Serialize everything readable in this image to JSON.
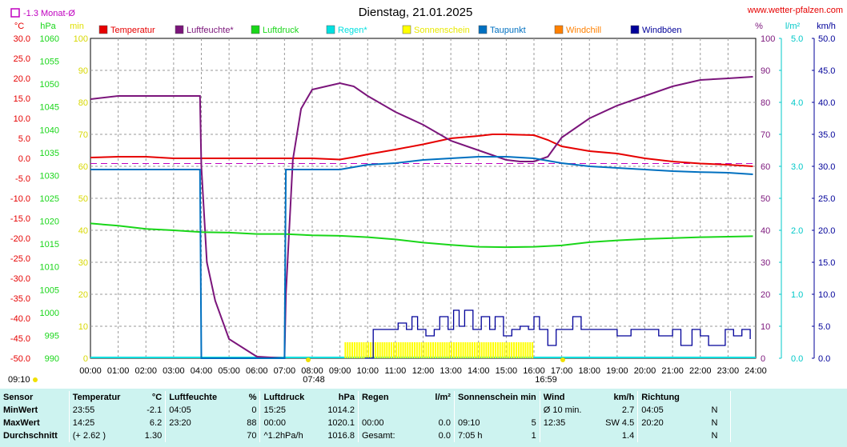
{
  "header": {
    "title": "Dienstag, 21.01.2025",
    "site": "www.wetter-pfalzen.com",
    "month_avg": "-1.3 Monat-Ø"
  },
  "units": {
    "temp": "°C",
    "press": "hPa",
    "min": "min",
    "hum": "%",
    "rain": "l/m²",
    "wind": "km/h"
  },
  "colors": {
    "temperature": "#e60000",
    "humidity": "#7b157b",
    "pressure": "#19d619",
    "rain": "#00e0e0",
    "sunshine": "#ffff00",
    "dewpoint": "#0070c0",
    "windchill": "#ff8000",
    "gusts": "#000099"
  },
  "legend": [
    {
      "name": "Temperatur",
      "color": "#e60000"
    },
    {
      "name": "Luftfeuchte*",
      "color": "#7b157b"
    },
    {
      "name": "Luftdruck",
      "color": "#19d619"
    },
    {
      "name": "Regen*",
      "color": "#00e0e0"
    },
    {
      "name": "Sonnenschein",
      "color": "#ffff00"
    },
    {
      "name": "Taupunkt",
      "color": "#0070c0"
    },
    {
      "name": "Windchill",
      "color": "#ff8000"
    },
    {
      "name": "Windböen",
      "color": "#000099"
    }
  ],
  "chart_data": {
    "type": "line",
    "title": "Dienstag, 21.01.2025",
    "x_unit": "hour",
    "xlim": [
      0,
      24
    ],
    "x_ticks": [
      "00:00",
      "01:00",
      "02:00",
      "03:00",
      "04:00",
      "05:00",
      "06:00",
      "07:00",
      "08:00",
      "09:00",
      "10:00",
      "11:00",
      "12:00",
      "13:00",
      "14:00",
      "15:00",
      "16:00",
      "17:00",
      "18:00",
      "19:00",
      "20:00",
      "21:00",
      "22:00",
      "23:00",
      "24:00"
    ],
    "axes": {
      "temp": {
        "label": "°C",
        "range": [
          -50,
          30
        ],
        "ticks": [
          "30.0",
          "25.0",
          "20.0",
          "15.0",
          "10.0",
          "5.0",
          "0.0",
          "-5.0",
          "-10.0",
          "-15.0",
          "-20.0",
          "-25.0",
          "-30.0",
          "-35.0",
          "-40.0",
          "-45.0",
          "-50.0"
        ]
      },
      "press": {
        "label": "hPa",
        "range": [
          990,
          1060
        ],
        "ticks": [
          "1060",
          "1055",
          "1050",
          "1045",
          "1040",
          "1035",
          "1030",
          "1025",
          "1020",
          "1015",
          "1010",
          "1005",
          "1000",
          "995",
          "990"
        ]
      },
      "min": {
        "label": "min",
        "range": [
          0,
          100
        ],
        "ticks": [
          "100",
          "90",
          "80",
          "70",
          "60",
          "50",
          "40",
          "30",
          "20",
          "10",
          "0"
        ]
      },
      "hum": {
        "label": "%",
        "range": [
          0,
          100
        ],
        "ticks": [
          "100",
          "90",
          "80",
          "70",
          "60",
          "50",
          "40",
          "30",
          "20",
          "10",
          "0"
        ]
      },
      "rain": {
        "label": "l/m²",
        "range": [
          0,
          5
        ],
        "ticks": [
          "5.0",
          "4.0",
          "3.0",
          "2.0",
          "1.0",
          "0.0"
        ]
      },
      "wind": {
        "label": "km/h",
        "range": [
          0,
          50
        ],
        "ticks": [
          "50.0",
          "45.0",
          "40.0",
          "35.0",
          "30.0",
          "25.0",
          "20.0",
          "15.0",
          "10.0",
          "5.0",
          "0.0"
        ]
      }
    },
    "month_avg_temp": -1.3,
    "series": [
      {
        "name": "Temperatur",
        "axis": "temp",
        "x": [
          0,
          1,
          2,
          3,
          4,
          5,
          6,
          7,
          8,
          9,
          9.5,
          10,
          11,
          12,
          13,
          13.5,
          14,
          14.5,
          15,
          16,
          16.5,
          17,
          18,
          19,
          20,
          21,
          22,
          23,
          23.9
        ],
        "y": [
          0.2,
          0.4,
          0.4,
          0.0,
          0.0,
          0.0,
          0.0,
          0.0,
          0.0,
          -0.3,
          0.3,
          1.0,
          2.2,
          3.5,
          5.0,
          5.3,
          5.6,
          6.0,
          6.0,
          5.8,
          4.6,
          3.0,
          1.8,
          1.2,
          0.0,
          -0.8,
          -1.3,
          -1.6,
          -2.0
        ]
      },
      {
        "name": "Luftfeuchte*",
        "axis": "hum",
        "x": [
          0,
          1,
          2,
          3,
          3.95,
          4.0,
          4.2,
          4.5,
          5,
          6,
          7.0,
          7.05,
          7.3,
          7.6,
          8,
          8.5,
          9,
          9.5,
          10,
          11,
          12,
          13,
          14,
          15,
          15.5,
          16,
          16.5,
          17,
          18,
          19,
          20,
          21,
          22,
          23,
          23.9
        ],
        "y": [
          81,
          82,
          82,
          82,
          82,
          60,
          30,
          18,
          6,
          0.5,
          0,
          20,
          62,
          78,
          84,
          85,
          86,
          85,
          82,
          77,
          73,
          68,
          65,
          62,
          61.5,
          61.5,
          63,
          69,
          75,
          79,
          82,
          85,
          87,
          87.5,
          88
        ]
      },
      {
        "name": "Luftdruck",
        "axis": "press",
        "x": [
          0,
          1,
          2,
          3,
          4,
          5,
          6,
          7,
          8,
          9,
          10,
          11,
          12,
          13,
          14,
          15,
          16,
          17,
          18,
          19,
          20,
          21,
          22,
          23,
          23.9
        ],
        "y": [
          1019.5,
          1019,
          1018.3,
          1018,
          1017.6,
          1017.5,
          1017.2,
          1017.2,
          1016.9,
          1016.8,
          1016.5,
          1016.0,
          1015.3,
          1014.8,
          1014.4,
          1014.3,
          1014.4,
          1014.7,
          1015.4,
          1015.8,
          1016.1,
          1016.3,
          1016.5,
          1016.6,
          1016.7
        ]
      },
      {
        "name": "Taupunkt",
        "axis": "hum",
        "x": [
          0,
          1,
          2,
          3,
          3.95,
          4.0,
          4.2,
          6.9,
          7.0,
          7.05,
          9,
          10,
          11,
          12,
          13,
          14,
          15,
          16,
          17,
          18,
          19,
          20,
          21,
          22,
          23,
          23.9
        ],
        "y": [
          59,
          59,
          59,
          59,
          59,
          0,
          0,
          0,
          0,
          59,
          59,
          60.5,
          61,
          62,
          62.5,
          63,
          63,
          62.5,
          61,
          60,
          59.5,
          59,
          58.5,
          58.2,
          58,
          57.5
        ]
      },
      {
        "name": "Windböen",
        "axis": "wind",
        "x": [
          9.9,
          10.2,
          10.5,
          10.8,
          11.1,
          11.4,
          11.6,
          11.8,
          12.1,
          12.4,
          12.6,
          12.9,
          13.1,
          13.3,
          13.5,
          13.8,
          14.1,
          14.4,
          14.6,
          14.9,
          15.2,
          15.5,
          15.8,
          16.0,
          16.2,
          16.5,
          16.8,
          17.1,
          17.4,
          17.7,
          18,
          18.5,
          19,
          19.5,
          20,
          20.5,
          21,
          21.3,
          21.7,
          22,
          22.3,
          22.6,
          22.9,
          23.2,
          23.5,
          23.8
        ],
        "y": [
          0,
          4.5,
          4.5,
          4.5,
          5.5,
          4.5,
          6.5,
          4.5,
          3.5,
          4.5,
          6.5,
          4.5,
          7.5,
          5,
          7.5,
          4.5,
          6.5,
          4.5,
          6.5,
          3.5,
          4.5,
          5,
          4.5,
          6.5,
          4.5,
          2,
          4.5,
          4.5,
          6.5,
          4.5,
          4.5,
          4.5,
          3.5,
          4.5,
          4.5,
          3.5,
          4.5,
          2,
          4.5,
          3.5,
          2,
          2,
          4.5,
          3.5,
          4.5,
          3
        ]
      }
    ],
    "sunshine": {
      "axis": "min",
      "from": "09:10",
      "to": "16:00",
      "level": 5
    },
    "markers": [
      {
        "time": "07:48",
        "x": 7.8,
        "label": "07:48"
      },
      {
        "time": "16:59",
        "x": 16.98,
        "label": "16:59"
      },
      {
        "time": "09:10",
        "label": "09:10"
      }
    ]
  },
  "stats": {
    "headers": {
      "sensor": "Sensor",
      "temperatur": "Temperatur",
      "temp_unit": "°C",
      "luftfeuchte": "Luftfeuchte",
      "hum_unit": "%",
      "luftdruck": "Luftdruck",
      "press_unit": "hPa",
      "regen": "Regen",
      "rain_unit": "l/m²",
      "sonne": "Sonnenschein min",
      "wind": "Wind",
      "wind_unit": "km/h",
      "richtung": "Richtung"
    },
    "rows": [
      {
        "label": "MinWert",
        "t_time": "23:55",
        "t_val": "-2.1",
        "h_time": "04:05",
        "h_val": "0",
        "p_time": "15:25",
        "p_val": "1014.2",
        "r_time": "",
        "r_val": "",
        "s_time": "",
        "s_val": "",
        "w_time": "Ø 10 min.",
        "w_val": "2.7",
        "d_time": "04:05",
        "d_val": "N"
      },
      {
        "label": "MaxWert",
        "t_time": "14:25",
        "t_val": "6.2",
        "h_time": "23:20",
        "h_val": "88",
        "p_time": "00:00",
        "p_val": "1020.1",
        "r_time": "00:00",
        "r_val": "0.0",
        "s_time": "09:10",
        "s_val": "5",
        "w_time": "12:35",
        "w_val": "SW 4.5",
        "d_time": "20:20",
        "d_val": "N"
      },
      {
        "label": "Durchschnitt",
        "t_time": "(+ 2.62 )",
        "t_val": "1.30",
        "h_time": "",
        "h_val": "70",
        "p_time": "^1.2hPa/h",
        "p_val": "1016.8",
        "r_time": "Gesamt:",
        "r_val": "0.0",
        "s_time": "7:05 h",
        "s_val": "1",
        "w_time": "",
        "w_val": "1.4",
        "d_time": "",
        "d_val": "N"
      }
    ]
  }
}
